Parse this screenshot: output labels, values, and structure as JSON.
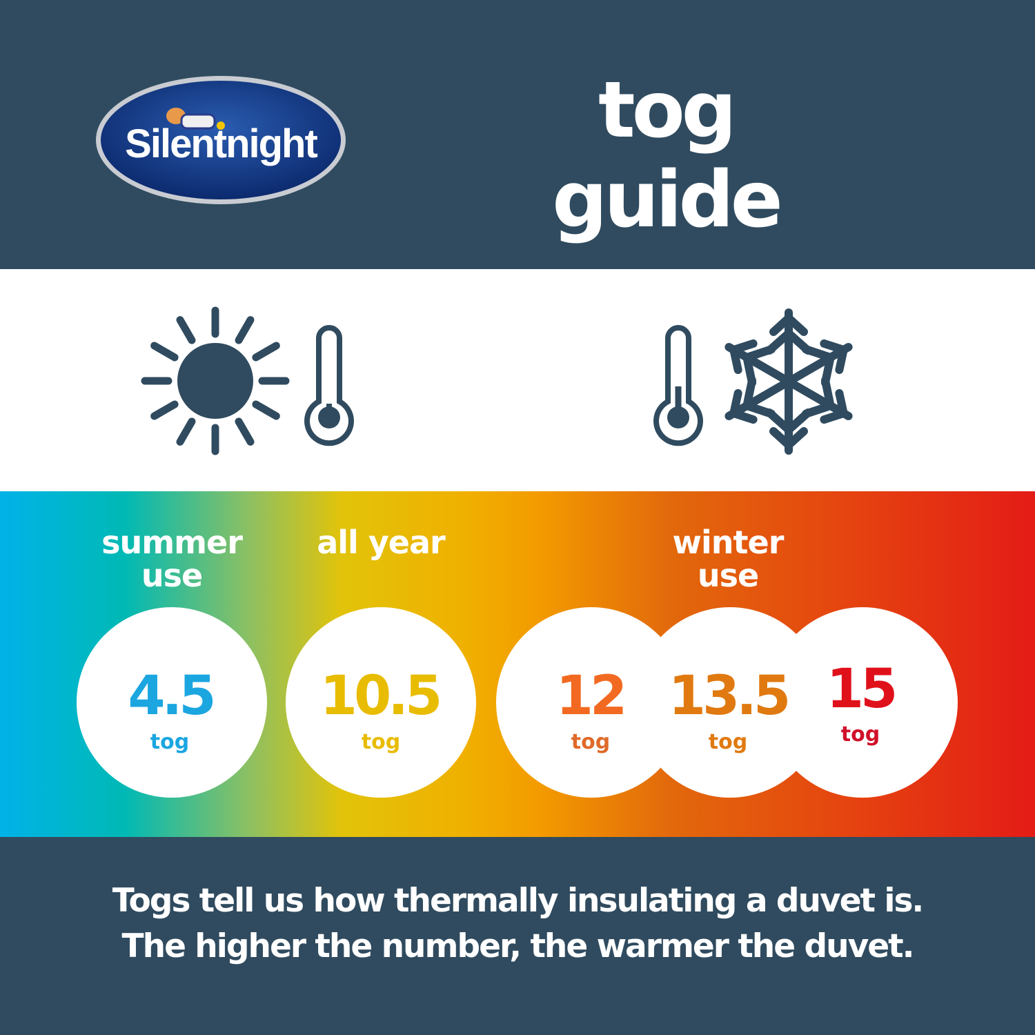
{
  "brand": {
    "logo_text": "Silentnight"
  },
  "header": {
    "title": "tog guide"
  },
  "icons": [
    "sun-icon",
    "thermometer-low-icon",
    "thermometer-high-icon",
    "snowflake-icon"
  ],
  "colors": {
    "dark_blue": "#304b5f",
    "summer": "#1ba6e0",
    "all_year": "#e8bc00",
    "tog12": "#f26a21",
    "tog13_5": "#e07a10",
    "tog15": "#e0101a"
  },
  "categories": [
    {
      "line1": "summer",
      "line2": "use"
    },
    {
      "line1": "all year",
      "line2": ""
    },
    {
      "line1": "winter",
      "line2": "use"
    }
  ],
  "togs": [
    {
      "value": "4.5",
      "unit": "tog"
    },
    {
      "value": "10.5",
      "unit": "tog"
    },
    {
      "value": "12",
      "unit": "tog"
    },
    {
      "value": "13.5",
      "unit": "tog"
    },
    {
      "value": "15",
      "unit": "tog"
    }
  ],
  "footer": {
    "line1": "Togs tell us how thermally insulating a duvet is.",
    "line2": "The higher the number, the warmer the duvet."
  }
}
